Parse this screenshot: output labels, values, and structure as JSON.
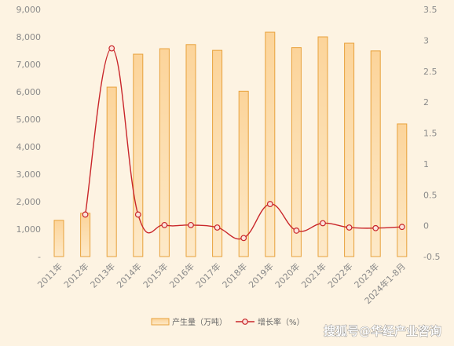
{
  "chart_data": {
    "type": "bar+line",
    "categories": [
      "2011年",
      "2012年",
      "2013年",
      "2014年",
      "2015年",
      "2016年",
      "2017年",
      "2018年",
      "2019年",
      "2020年",
      "2021年",
      "2022年",
      "2023年",
      "2024年1-8月"
    ],
    "series": [
      {
        "name": "产生量（万吨）",
        "type": "bar",
        "axis": "left",
        "values": [
          1320,
          1580,
          6170,
          7370,
          7570,
          7720,
          7510,
          6020,
          8170,
          7610,
          8000,
          7770,
          7490,
          4830
        ]
      },
      {
        "name": "增长率（%）",
        "type": "line",
        "axis": "right",
        "values": [
          null,
          0.18,
          2.87,
          0.18,
          0.01,
          0.01,
          -0.03,
          -0.2,
          0.35,
          -0.08,
          0.04,
          -0.03,
          -0.04,
          -0.02
        ]
      }
    ],
    "y_left": {
      "min": 0,
      "max": 9000,
      "ticks": [
        0,
        1000,
        2000,
        3000,
        4000,
        5000,
        6000,
        7000,
        8000,
        9000
      ],
      "tick_labels": [
        "-",
        "1,000",
        "2,000",
        "3,000",
        "4,000",
        "5,000",
        "6,000",
        "7,000",
        "8,000",
        "9,000"
      ]
    },
    "y_right": {
      "min": -0.5,
      "max": 3.5,
      "ticks": [
        -0.5,
        0,
        0.5,
        1,
        1.5,
        2,
        2.5,
        3,
        3.5
      ],
      "tick_labels": [
        "-0.5",
        "0",
        "0.5",
        "1",
        "1.5",
        "2",
        "2.5",
        "3",
        "3.5"
      ]
    },
    "legend_position": "bottom-center",
    "grid": false,
    "colors": {
      "bar_fill_top": "#fcd49a",
      "bar_fill_bottom": "#fde9c8",
      "bar_stroke": "#e8a23c",
      "line": "#c9262a",
      "marker_fill": "#fbe3dc"
    }
  },
  "watermark": "搜狐号@华经产业咨询"
}
